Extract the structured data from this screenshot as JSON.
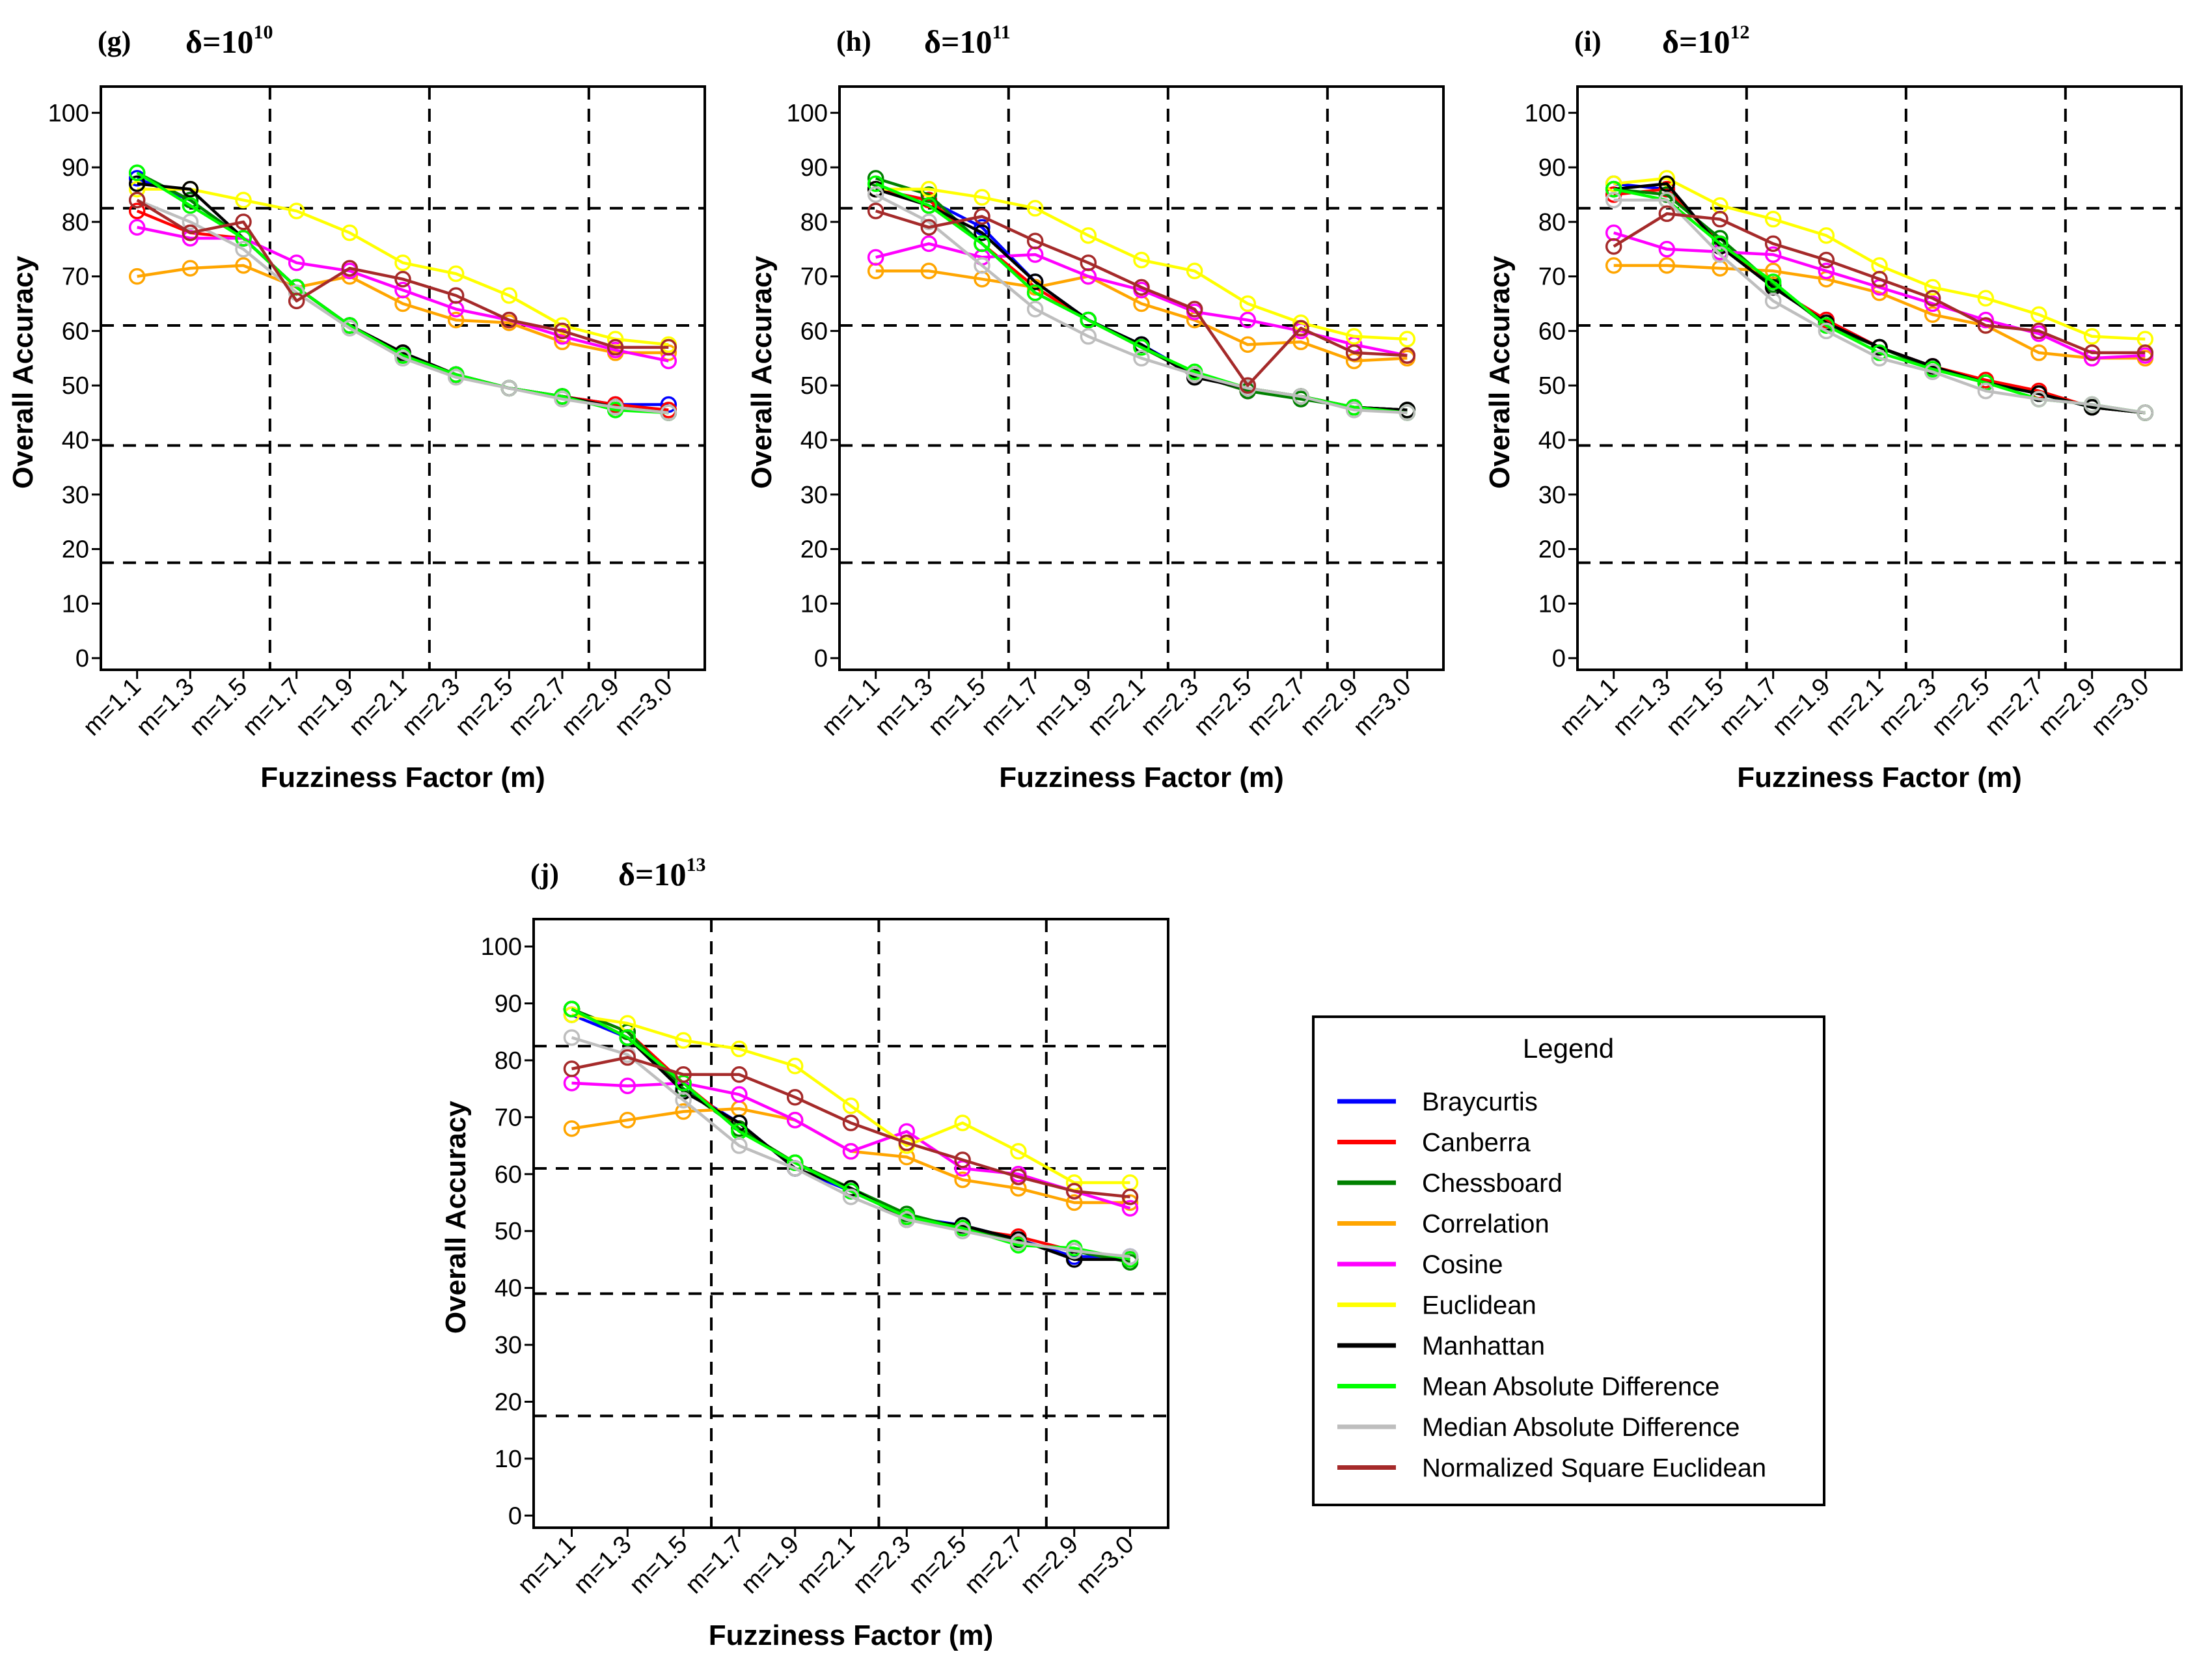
{
  "figure": {
    "legend": {
      "title": "Legend",
      "entries": [
        {
          "name": "Braycurtis",
          "color": "#0000ff"
        },
        {
          "name": "Canberra",
          "color": "#ff0000"
        },
        {
          "name": "Chessboard",
          "color": "#008000"
        },
        {
          "name": "Correlation",
          "color": "#ffa500"
        },
        {
          "name": "Cosine",
          "color": "#ff00ff"
        },
        {
          "name": "Euclidean",
          "color": "#ffff00"
        },
        {
          "name": "Manhattan",
          "color": "#000000"
        },
        {
          "name": "Mean Absolute Difference",
          "color": "#00ff00"
        },
        {
          "name": "Median Absolute Difference",
          "color": "#bebebe"
        },
        {
          "name": "Normalized Square Euclidean",
          "color": "#a52a2a"
        }
      ]
    }
  },
  "chart_data": [
    {
      "type": "line",
      "panel": "(g)",
      "delta_base": "δ=10",
      "delta_exp": "10",
      "xlabel": "Fuzziness Factor (m)",
      "ylabel": "Overall Accuracy",
      "categories": [
        "m=1.1",
        "m=1.3",
        "m=1.5",
        "m=1.7",
        "m=1.9",
        "m=2.1",
        "m=2.3",
        "m=2.5",
        "m=2.7",
        "m=2.9",
        "m=3.0"
      ],
      "yticks": [
        0,
        10,
        20,
        30,
        40,
        50,
        60,
        70,
        80,
        90,
        100
      ],
      "ylim": [
        0,
        100
      ],
      "dashed_y": [
        17.5,
        39,
        61,
        82.5
      ],
      "series": [
        {
          "name": "Braycurtis",
          "values": [
            88,
            84,
            77,
            68,
            61,
            56,
            52,
            49.5,
            48,
            46.5,
            46.5
          ]
        },
        {
          "name": "Canberra",
          "values": [
            82,
            78,
            77,
            68,
            61,
            56,
            52,
            49.5,
            48,
            46.5,
            45.5
          ]
        },
        {
          "name": "Chessboard",
          "values": [
            89,
            84,
            77,
            68,
            61,
            55.5,
            52,
            49.5,
            48,
            46,
            45
          ]
        },
        {
          "name": "Correlation",
          "values": [
            70,
            71.5,
            72,
            68,
            70,
            65,
            62,
            61.5,
            58,
            56,
            56
          ]
        },
        {
          "name": "Cosine",
          "values": [
            79,
            77,
            77,
            72.5,
            71,
            67.5,
            64,
            62,
            59,
            56.5,
            54.5
          ]
        },
        {
          "name": "Euclidean",
          "values": [
            86,
            86,
            84,
            82,
            78,
            72.5,
            70.5,
            66.5,
            61,
            58.5,
            57.5
          ]
        },
        {
          "name": "Manhattan",
          "values": [
            87,
            86,
            77,
            68,
            61,
            56,
            52,
            49.5,
            48,
            46,
            45
          ]
        },
        {
          "name": "Mean Absolute Difference",
          "values": [
            89,
            83,
            77,
            68,
            61,
            55.5,
            52,
            49.5,
            48,
            45.5,
            45
          ]
        },
        {
          "name": "Median Absolute Difference",
          "values": [
            84,
            80,
            75,
            67,
            60.5,
            55,
            51.5,
            49.5,
            47.5,
            46,
            45
          ]
        },
        {
          "name": "Normalized Square Euclidean",
          "values": [
            84,
            78,
            80,
            65.5,
            71.5,
            69.5,
            66.5,
            62,
            60,
            57,
            57
          ]
        }
      ]
    },
    {
      "type": "line",
      "panel": "(h)",
      "delta_base": "δ=10",
      "delta_exp": "11",
      "xlabel": "Fuzziness Factor (m)",
      "ylabel": "Overall Accuracy",
      "categories": [
        "m=1.1",
        "m=1.3",
        "m=1.5",
        "m=1.7",
        "m=1.9",
        "m=2.1",
        "m=2.3",
        "m=2.5",
        "m=2.7",
        "m=2.9",
        "m=3.0"
      ],
      "yticks": [
        0,
        10,
        20,
        30,
        40,
        50,
        60,
        70,
        80,
        90,
        100
      ],
      "ylim": [
        0,
        100
      ],
      "dashed_y": [
        17.5,
        39,
        61,
        82.5
      ],
      "series": [
        {
          "name": "Braycurtis",
          "values": [
            86,
            84,
            79,
            69,
            62,
            57.5,
            52,
            49,
            48,
            46,
            45.5
          ]
        },
        {
          "name": "Canberra",
          "values": [
            86,
            84,
            76,
            68,
            62,
            57,
            52,
            49,
            48,
            46,
            45.5
          ]
        },
        {
          "name": "Chessboard",
          "values": [
            88,
            85,
            76,
            67,
            62,
            57,
            52,
            49,
            47.5,
            46,
            45.5
          ]
        },
        {
          "name": "Correlation",
          "values": [
            71,
            71,
            69.5,
            68,
            70,
            65,
            62,
            57.5,
            58,
            54.5,
            55
          ]
        },
        {
          "name": "Cosine",
          "values": [
            73.5,
            76,
            73.5,
            74,
            70,
            67.5,
            63.5,
            62,
            60,
            57.5,
            55.5
          ]
        },
        {
          "name": "Euclidean",
          "values": [
            86,
            86,
            84.5,
            82.5,
            77.5,
            73,
            71,
            65,
            61.5,
            59,
            58.5
          ]
        },
        {
          "name": "Manhattan",
          "values": [
            86,
            83,
            78,
            69,
            62,
            57.5,
            51.5,
            49.5,
            48,
            46,
            45.5
          ]
        },
        {
          "name": "Mean Absolute Difference",
          "values": [
            87,
            83,
            76,
            67,
            62,
            57,
            52.5,
            49.5,
            48,
            46,
            45
          ]
        },
        {
          "name": "Median Absolute Difference",
          "values": [
            85,
            80,
            72,
            64,
            59,
            55,
            52,
            49.5,
            48,
            45.5,
            45
          ]
        },
        {
          "name": "Normalized Square Euclidean",
          "values": [
            82,
            79,
            81,
            76.5,
            72.5,
            68,
            64,
            50,
            60.5,
            56,
            55.5
          ]
        }
      ]
    },
    {
      "type": "line",
      "panel": "(i)",
      "delta_base": "δ=10",
      "delta_exp": "12",
      "xlabel": "Fuzziness Factor (m)",
      "ylabel": "Overall Accuracy",
      "categories": [
        "m=1.1",
        "m=1.3",
        "m=1.5",
        "m=1.7",
        "m=1.9",
        "m=2.1",
        "m=2.3",
        "m=2.5",
        "m=2.7",
        "m=2.9",
        "m=3.0"
      ],
      "yticks": [
        0,
        10,
        20,
        30,
        40,
        50,
        60,
        70,
        80,
        90,
        100
      ],
      "ylim": [
        0,
        100
      ],
      "dashed_y": [
        17.5,
        39,
        61,
        82.5
      ],
      "series": [
        {
          "name": "Braycurtis",
          "values": [
            87,
            86,
            76,
            68,
            62,
            57,
            53.5,
            50.5,
            48.5,
            46,
            45
          ]
        },
        {
          "name": "Canberra",
          "values": [
            85,
            86,
            76,
            68,
            62,
            57,
            53.5,
            51,
            49,
            46,
            45
          ]
        },
        {
          "name": "Chessboard",
          "values": [
            86,
            85,
            77,
            68.5,
            61,
            57,
            53,
            50.5,
            48.5,
            46,
            45
          ]
        },
        {
          "name": "Correlation",
          "values": [
            72,
            72,
            71.5,
            71,
            69.5,
            67,
            63,
            61,
            56,
            55,
            55
          ]
        },
        {
          "name": "Cosine",
          "values": [
            78,
            75,
            74.5,
            74,
            71,
            68,
            65,
            62,
            59.5,
            55,
            55.5
          ]
        },
        {
          "name": "Euclidean",
          "values": [
            87,
            88,
            83,
            80.5,
            77.5,
            72,
            68,
            66,
            63,
            59,
            58.5
          ]
        },
        {
          "name": "Manhattan",
          "values": [
            86,
            87,
            75.5,
            68,
            61.5,
            57,
            53.5,
            50.5,
            48.5,
            46,
            45
          ]
        },
        {
          "name": "Mean Absolute Difference",
          "values": [
            86,
            84,
            76,
            69,
            61,
            56,
            53,
            50.5,
            47.5,
            46.5,
            45
          ]
        },
        {
          "name": "Median Absolute Difference",
          "values": [
            84,
            84,
            74,
            65.5,
            60,
            55,
            52.5,
            49,
            47.5,
            46.5,
            45
          ]
        },
        {
          "name": "Normalized Square Euclidean",
          "values": [
            75.5,
            81.5,
            80.5,
            76,
            73,
            69.5,
            66,
            61,
            60,
            56,
            56
          ]
        }
      ]
    },
    {
      "type": "line",
      "panel": "(j)",
      "delta_base": "δ=10",
      "delta_exp": "13",
      "xlabel": "Fuzziness Factor (m)",
      "ylabel": "Overall Accuracy",
      "categories": [
        "m=1.1",
        "m=1.3",
        "m=1.5",
        "m=1.7",
        "m=1.9",
        "m=2.1",
        "m=2.3",
        "m=2.5",
        "m=2.7",
        "m=2.9",
        "m=3.0"
      ],
      "yticks": [
        0,
        10,
        20,
        30,
        40,
        50,
        60,
        70,
        80,
        90,
        100
      ],
      "ylim": [
        0,
        100
      ],
      "dashed_y": [
        17.5,
        39,
        61,
        82.5
      ],
      "series": [
        {
          "name": "Braycurtis",
          "values": [
            88,
            84,
            75,
            69,
            61,
            57,
            52.5,
            51,
            48.5,
            45.5,
            45.5
          ]
        },
        {
          "name": "Canberra",
          "values": [
            89,
            85,
            76,
            68,
            62,
            57.5,
            52.5,
            50.5,
            49,
            46.5,
            45
          ]
        },
        {
          "name": "Chessboard",
          "values": [
            89,
            85,
            75,
            68,
            62,
            57.5,
            53,
            50.5,
            48,
            46.5,
            44.5
          ]
        },
        {
          "name": "Correlation",
          "values": [
            68,
            69.5,
            71,
            71.5,
            69.5,
            64,
            63,
            59,
            57.5,
            55,
            55
          ]
        },
        {
          "name": "Cosine",
          "values": [
            76,
            75.5,
            76,
            74,
            69.5,
            64,
            67.5,
            61,
            60,
            57,
            54
          ]
        },
        {
          "name": "Euclidean",
          "values": [
            88,
            86.5,
            83.5,
            82,
            79,
            72,
            65,
            69,
            64,
            58.5,
            58.5
          ]
        },
        {
          "name": "Manhattan",
          "values": [
            89,
            84,
            74.5,
            69,
            61,
            57.5,
            52,
            51,
            48.5,
            45,
            45
          ]
        },
        {
          "name": "Mean Absolute Difference",
          "values": [
            89,
            84,
            76,
            67.5,
            62,
            57,
            52.5,
            50.5,
            47.5,
            47,
            45
          ]
        },
        {
          "name": "Median Absolute Difference",
          "values": [
            84,
            81,
            73,
            65,
            61,
            56,
            52,
            50,
            48,
            46.5,
            45.5
          ]
        },
        {
          "name": "Normalized Square Euclidean",
          "values": [
            78.5,
            80.5,
            77.5,
            77.5,
            73.5,
            69,
            65.5,
            62.5,
            59.5,
            57,
            56
          ]
        }
      ]
    }
  ]
}
